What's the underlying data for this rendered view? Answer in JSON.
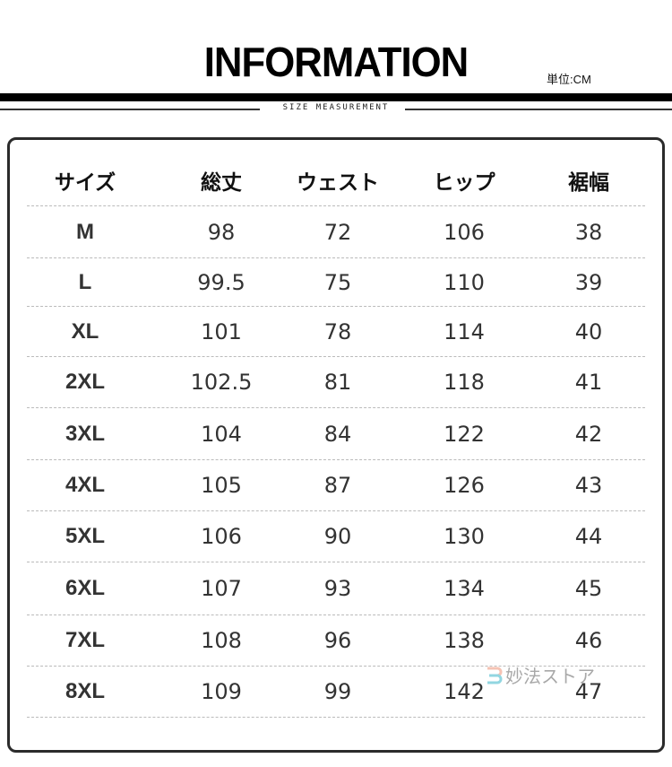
{
  "header": {
    "title": "INFORMATION",
    "unit": "単位:CM",
    "subtitle": "SIZE MEASUREMENT"
  },
  "table": {
    "columns": [
      "サイズ",
      "総丈",
      "ウェスト",
      "ヒップ",
      "裾幅"
    ],
    "rows": [
      [
        "M",
        "98",
        "72",
        "106",
        "38"
      ],
      [
        "L",
        "99.5",
        "75",
        "110",
        "39"
      ],
      [
        "XL",
        "101",
        "78",
        "114",
        "40"
      ],
      [
        "2XL",
        "102.5",
        "81",
        "118",
        "41"
      ],
      [
        "3XL",
        "104",
        "84",
        "122",
        "42"
      ],
      [
        "4XL",
        "105",
        "87",
        "126",
        "43"
      ],
      [
        "5XL",
        "106",
        "90",
        "130",
        "44"
      ],
      [
        "6XL",
        "107",
        "93",
        "134",
        "45"
      ],
      [
        "7XL",
        "108",
        "96",
        "138",
        "46"
      ],
      [
        "8XL",
        "109",
        "99",
        "142",
        "47"
      ]
    ]
  },
  "watermark": {
    "text": "妙法ストア",
    "colors": [
      "#f4b9a8",
      "#7fd0dc"
    ]
  }
}
